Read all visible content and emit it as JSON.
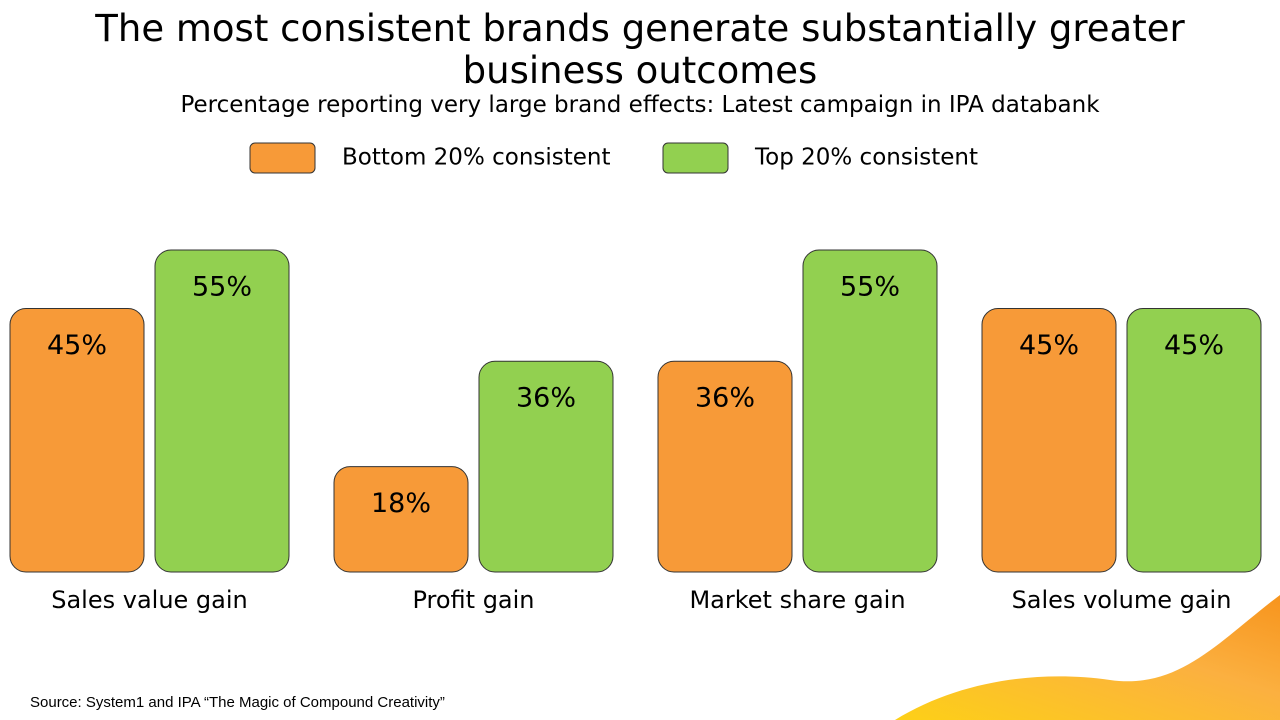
{
  "chart_data": {
    "type": "bar",
    "title": "The most consistent brands generate substantially greater business outcomes",
    "subtitle": "Percentage reporting very large brand effects: Latest campaign in IPA databank",
    "categories": [
      "Sales value gain",
      "Profit gain",
      "Market share gain",
      "Sales volume gain"
    ],
    "series": [
      {
        "name": "Bottom 20% consistent",
        "color": "#f79a38",
        "values": [
          45,
          18,
          36,
          45
        ],
        "value_labels": [
          "45%",
          "18%",
          "36%",
          "45%"
        ]
      },
      {
        "name": "Top 20% consistent",
        "color": "#92d050",
        "values": [
          55,
          36,
          55,
          45
        ],
        "value_labels": [
          "55%",
          "36%",
          "55%",
          "45%"
        ]
      }
    ],
    "source": "Source: System1 and IPA “The Magic of Compound Creativity”"
  }
}
